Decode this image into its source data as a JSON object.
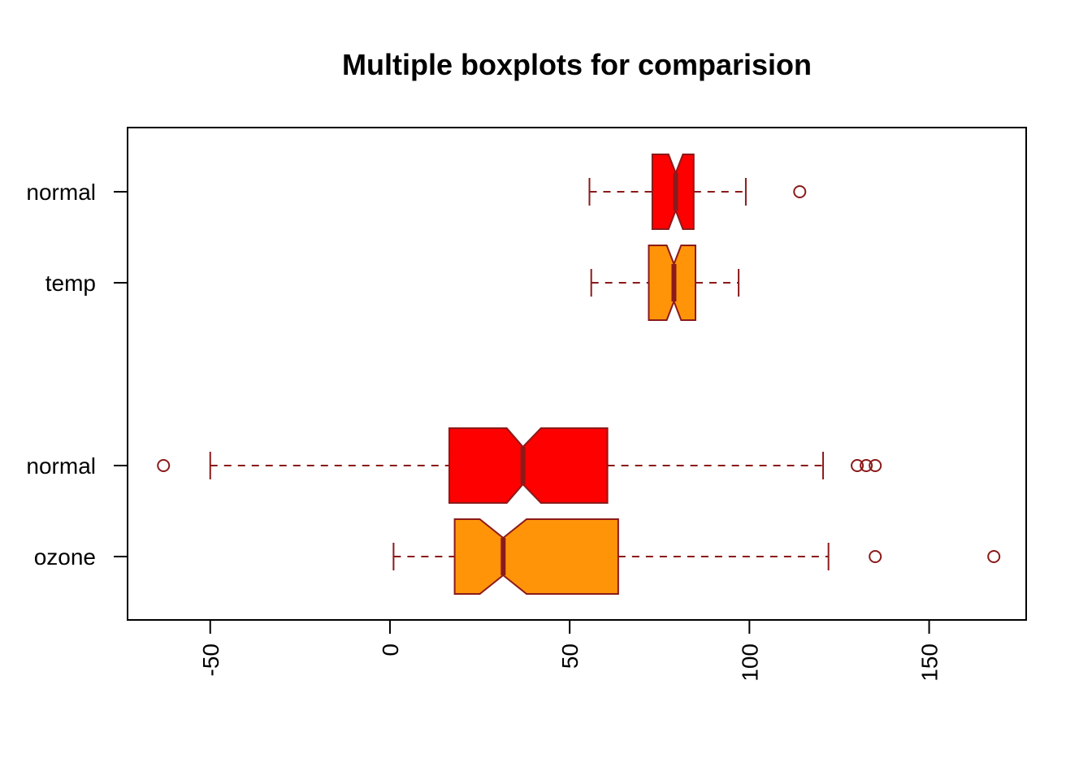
{
  "chart_data": {
    "type": "boxplot",
    "orientation": "horizontal",
    "notched": true,
    "title": "Multiple boxplots for comparision",
    "xlabel": "",
    "ylabel": "",
    "xlim": [
      -73,
      177
    ],
    "x_ticks": [
      -50,
      0,
      50,
      100,
      150
    ],
    "x_tick_labels": [
      "-50",
      "0",
      "50",
      "100",
      "150"
    ],
    "grid": false,
    "legend": "none",
    "border_color": "#8B1A1A",
    "series": [
      {
        "label": "ozone",
        "color": "#FF9408",
        "whisker_low": 1,
        "q1": 18,
        "median": 31.5,
        "q3": 63.5,
        "whisker_high": 122,
        "notch_low": 25,
        "notch_high": 38,
        "outliers": [
          135,
          168
        ]
      },
      {
        "label": "normal",
        "color": "#FF0000",
        "whisker_low": -50,
        "q1": 16.5,
        "median": 37,
        "q3": 60.5,
        "whisker_high": 120.5,
        "notch_low": 32.5,
        "notch_high": 42,
        "outliers": [
          -63,
          130,
          132.5,
          135
        ]
      },
      {
        "label": "temp",
        "color": "#FF9408",
        "whisker_low": 56,
        "q1": 72,
        "median": 79,
        "q3": 85,
        "whisker_high": 97,
        "notch_low": 77,
        "notch_high": 81,
        "outliers": []
      },
      {
        "label": "normal",
        "color": "#FF0000",
        "whisker_low": 55.5,
        "q1": 73,
        "median": 79.5,
        "q3": 84.5,
        "whisker_high": 99,
        "notch_low": 77.5,
        "notch_high": 81.5,
        "outliers": [
          114
        ]
      }
    ]
  }
}
